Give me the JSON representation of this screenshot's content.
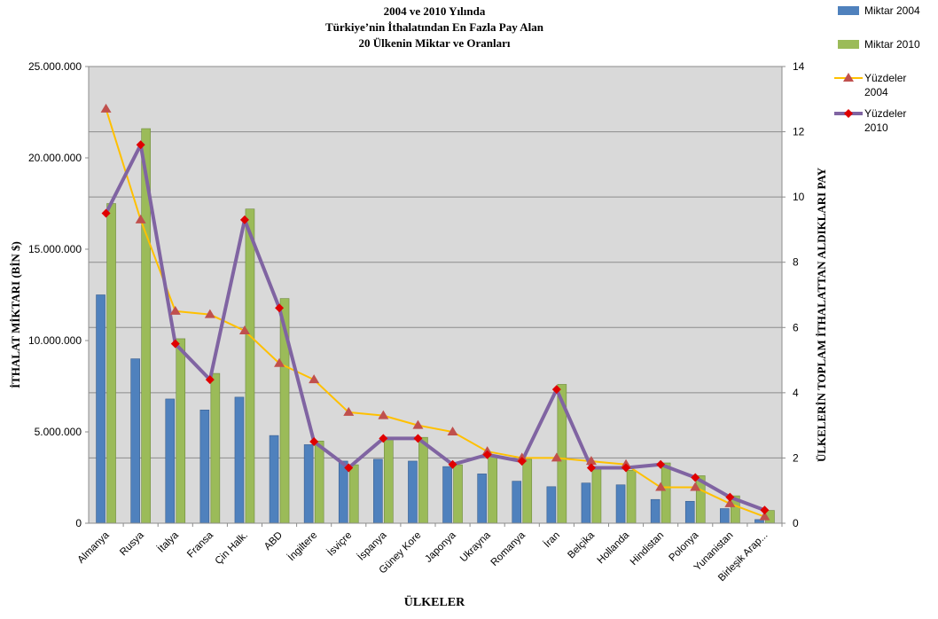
{
  "chart_data": {
    "type": "bar",
    "title_lines": [
      "2004 ve 2010 Yılında",
      "Türkiye’nin İthalatından En Fazla Pay Alan",
      "20 Ülkenin Miktar ve Oranları"
    ],
    "xlabel": "ÜLKELER",
    "ylabel_left": "İTHALAT MİKTARI (BİN $)",
    "ylabel_right": "ÜLKELERİN TOPLAM İTHALATTAN ALDIKLARI PAY",
    "ylim_left": [
      0,
      25000000
    ],
    "yticks_left": [
      "0",
      "5.000.000",
      "10.000.000",
      "15.000.000",
      "20.000.000",
      "25.000.000"
    ],
    "ylim_right": [
      0,
      14
    ],
    "yticks_right": [
      "0",
      "2",
      "4",
      "6",
      "8",
      "10",
      "12",
      "14"
    ],
    "grid": true,
    "legend_position": "top-right",
    "categories": [
      "Almanya",
      "Rusya",
      "İtalya",
      "Fransa",
      "Çin Halk.",
      "ABD",
      "İngiltere",
      "İsviçre",
      "İspanya",
      "Güney Kore",
      "Japonya",
      "Ukrayna",
      "Romanya",
      "İran",
      "Belçika",
      "Hollanda",
      "Hindistan",
      "Polonya",
      "Yunanistan",
      "Birleşik Arap..."
    ],
    "bar_series": [
      {
        "name": "Miktar 2004",
        "color": "#4f81bd",
        "values": [
          12500000,
          9000000,
          6800000,
          6200000,
          6900000,
          4800000,
          4300000,
          3400000,
          3500000,
          3400000,
          3100000,
          2700000,
          2300000,
          2000000,
          2200000,
          2100000,
          1300000,
          1200000,
          800000,
          200000
        ]
      },
      {
        "name": "Miktar 2010",
        "color": "#9bbb59",
        "values": [
          17500000,
          21600000,
          10100000,
          8200000,
          17200000,
          12300000,
          4500000,
          3200000,
          4700000,
          4700000,
          3200000,
          3700000,
          3500000,
          7600000,
          3000000,
          2900000,
          3300000,
          2600000,
          1500000,
          700000
        ]
      }
    ],
    "line_series": [
      {
        "name": "Yüzdeler 2004",
        "color": "#ffc000",
        "marker": "triangle",
        "marker_color": "#c0504d",
        "values": [
          12.7,
          9.3,
          6.5,
          6.4,
          5.9,
          4.9,
          4.4,
          3.4,
          3.3,
          3.0,
          2.8,
          2.2,
          2.0,
          2.0,
          1.9,
          1.8,
          1.1,
          1.1,
          0.6,
          0.2
        ]
      },
      {
        "name": "Yüzdeler 2010",
        "color": "#8064a2",
        "marker": "diamond",
        "marker_color": "#e00000",
        "values": [
          9.5,
          11.6,
          5.5,
          4.4,
          9.3,
          6.6,
          2.5,
          1.7,
          2.6,
          2.6,
          1.8,
          2.1,
          1.9,
          4.1,
          1.7,
          1.7,
          1.8,
          1.4,
          0.8,
          0.4
        ]
      }
    ],
    "legend": [
      {
        "label_lines": [
          "Miktar 2004"
        ]
      },
      {
        "label_lines": [
          "Miktar 2010"
        ]
      },
      {
        "label_lines": [
          "Yüzdeler",
          "2004"
        ]
      },
      {
        "label_lines": [
          "Yüzdeler",
          "2010"
        ]
      }
    ]
  }
}
